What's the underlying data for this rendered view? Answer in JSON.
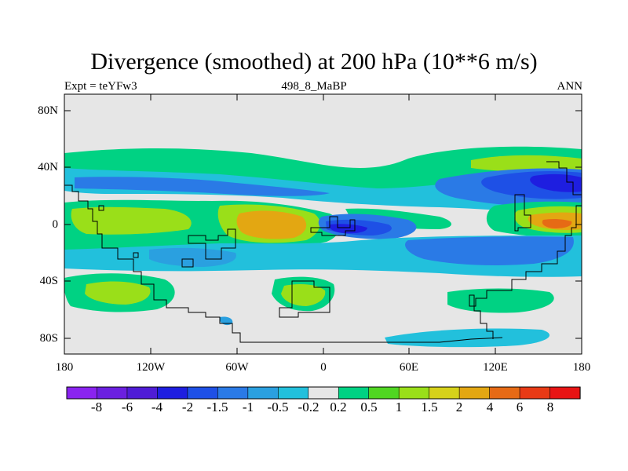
{
  "title": "Divergence (smoothed) at 200 hPa (10**6 m/s)",
  "subtitle_left": "Expt = teYFw3",
  "subtitle_center": "498_8_MaBP",
  "subtitle_right": "ANN",
  "lat_labels": [
    "80N",
    "40N",
    "0",
    "40S",
    "80S"
  ],
  "lon_labels": [
    "180",
    "120W",
    "60W",
    "0",
    "60E",
    "120E",
    "180"
  ],
  "colorbar": {
    "labels": [
      "-8",
      "-6",
      "-4",
      "-2",
      "-1.5",
      "-1",
      "-0.5",
      "-0.2",
      "0.2",
      "0.5",
      "1",
      "1.5",
      "2",
      "4",
      "6",
      "8"
    ],
    "colors": [
      "#8a23f0",
      "#6b1fe0",
      "#4f1cd6",
      "#1e1ee0",
      "#1e50e6",
      "#2a7ae6",
      "#2aa0e0",
      "#22c0dc",
      "#e6e6e6",
      "#00d283",
      "#50d622",
      "#9adf19",
      "#d6d11a",
      "#e3a712",
      "#e66a15",
      "#e83a15",
      "#e81414"
    ]
  },
  "map_colors": {
    "neutral": "#e6e6e6",
    "green": "#00d283",
    "lightgreen": "#50d622",
    "yellowgreen": "#9adf19",
    "yellow": "#d6d11a",
    "orange": "#e3a712",
    "redorange": "#e66a15",
    "cyan": "#22c0dc",
    "skyblue": "#2aa0e0",
    "blue": "#2a7ae6",
    "darkblue": "#1e50e6",
    "deepblue": "#1e1ee0"
  }
}
